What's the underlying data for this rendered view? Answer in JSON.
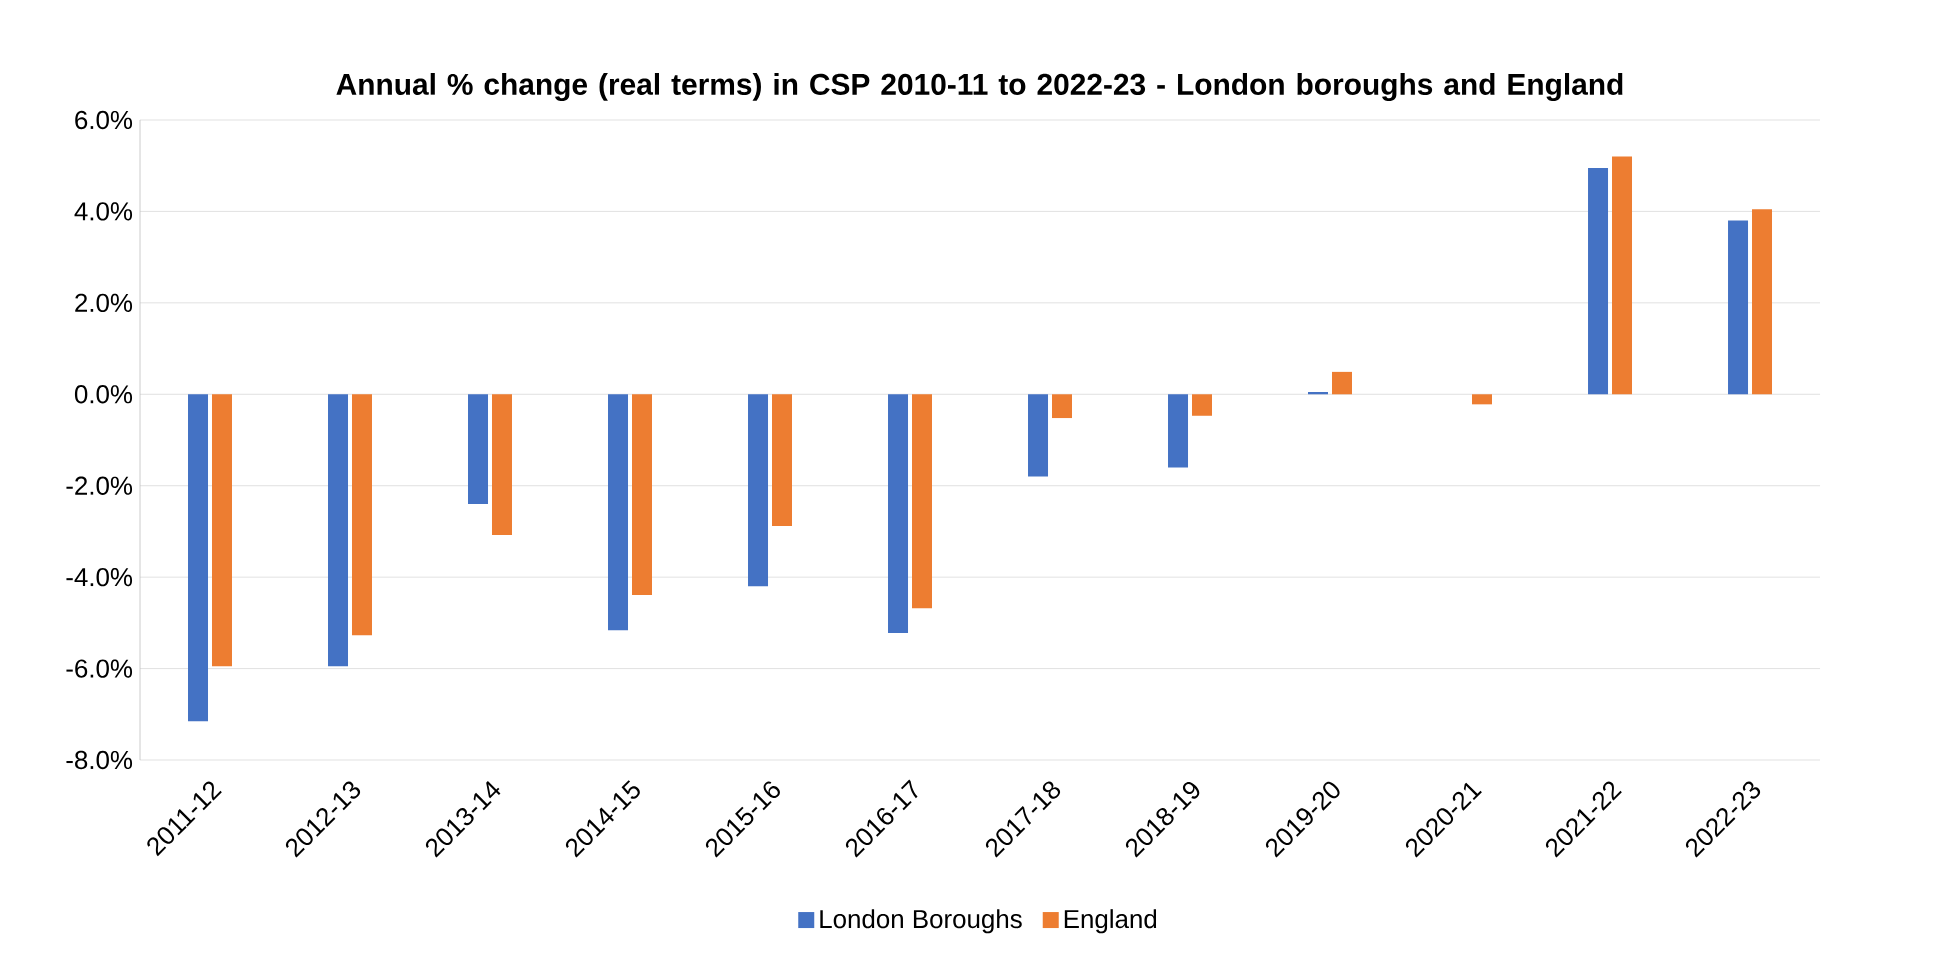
{
  "chart_data": {
    "type": "bar",
    "title": "Annual % change (real terms) in CSP 2010-11 to 2022-23 - London boroughs and England",
    "categories": [
      "2011-12",
      "2012-13",
      "2013-14",
      "2014-15",
      "2015-16",
      "2016-17",
      "2017-18",
      "2018-19",
      "2019-20",
      "2020-21",
      "2021-22",
      "2022-23"
    ],
    "series": [
      {
        "name": "London Boroughs",
        "color": "#4472c4",
        "values": [
          -7.15,
          -5.95,
          -2.4,
          -5.16,
          -4.2,
          -5.22,
          -1.8,
          -1.6,
          0.05,
          0,
          4.95,
          3.8
        ]
      },
      {
        "name": "England",
        "color": "#ed7d31",
        "values": [
          -5.95,
          -5.27,
          -3.08,
          -4.39,
          -2.88,
          -4.68,
          -0.52,
          -0.47,
          0.49,
          -0.22,
          5.2,
          4.05
        ]
      }
    ],
    "ylim": [
      -8,
      6
    ],
    "yticks": [
      {
        "value": -8,
        "label": "-8.0%"
      },
      {
        "value": -6,
        "label": "-6.0%"
      },
      {
        "value": -4,
        "label": "-4.0%"
      },
      {
        "value": -2,
        "label": "-2.0%"
      },
      {
        "value": 0,
        "label": "0.0%"
      },
      {
        "value": 2,
        "label": "2.0%"
      },
      {
        "value": 4,
        "label": "4.0%"
      },
      {
        "value": 6,
        "label": "6.0%"
      }
    ],
    "grid": "y",
    "legend": "bottom"
  }
}
